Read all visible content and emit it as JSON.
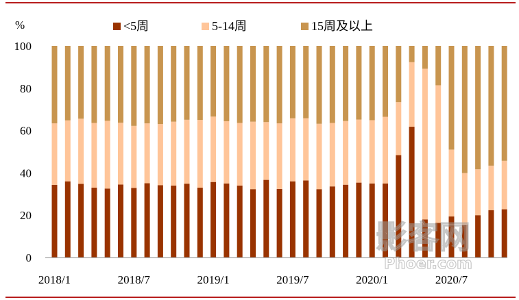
{
  "chart_data": {
    "type": "bar",
    "stacked": true,
    "y_unit": "%",
    "ylim": [
      0,
      100
    ],
    "yticks": [
      0,
      20,
      40,
      60,
      80,
      100
    ],
    "x_tick_labels": [
      "2018/1",
      "2018/7",
      "2019/1",
      "2019/7",
      "2020/1",
      "2020/7"
    ],
    "x_tick_index": [
      0,
      6,
      12,
      18,
      24,
      30
    ],
    "categories": [
      "2018/1",
      "2018/2",
      "2018/3",
      "2018/4",
      "2018/5",
      "2018/6",
      "2018/7",
      "2018/8",
      "2018/9",
      "2018/10",
      "2018/11",
      "2018/12",
      "2019/1",
      "2019/2",
      "2019/3",
      "2019/4",
      "2019/5",
      "2019/6",
      "2019/7",
      "2019/8",
      "2019/9",
      "2019/10",
      "2019/11",
      "2019/12",
      "2020/1",
      "2020/2",
      "2020/3",
      "2020/4",
      "2020/5",
      "2020/6",
      "2020/7",
      "2020/8",
      "2020/9",
      "2020/10",
      "2020/11"
    ],
    "series": [
      {
        "name": "<5周",
        "color": "#993300",
        "values": [
          34.3,
          36,
          34.8,
          33,
          32.6,
          34.5,
          32.9,
          35.1,
          34.2,
          34,
          34.9,
          33,
          35.7,
          35,
          34,
          32.3,
          36.7,
          32.4,
          36,
          36.4,
          32.3,
          33.6,
          34.4,
          35.4,
          35,
          35,
          48.4,
          61.8,
          18,
          16.4,
          19.4,
          15.6,
          20,
          22.4,
          22.8
        ]
      },
      {
        "name": "5-14周",
        "color": "#ffc599",
        "values": [
          29.1,
          28.8,
          30.8,
          30.6,
          32,
          29.2,
          29.3,
          28.3,
          28.9,
          30.2,
          30.2,
          32,
          30.9,
          29.4,
          29.6,
          31.9,
          27.3,
          31,
          29.8,
          29.4,
          30.9,
          30,
          30.1,
          29.8,
          29.9,
          31.5,
          25,
          30.5,
          71.2,
          65,
          31.6,
          24.3,
          21.7,
          21,
          22.9
        ]
      },
      {
        "name": "15周及以上",
        "color": "#c8954f",
        "values": [
          36.6,
          35.2,
          34.4,
          36.4,
          35.4,
          36.3,
          37.8,
          36.6,
          36.9,
          35.8,
          34.9,
          35,
          33.4,
          35.6,
          36.4,
          35.8,
          36,
          36.6,
          34.2,
          34.2,
          36.8,
          36.4,
          35.5,
          34.8,
          35.1,
          33.5,
          26.6,
          7.7,
          10.8,
          18.6,
          49,
          60.1,
          58.3,
          56.6,
          54.3
        ]
      }
    ],
    "legend_placement": "top-center",
    "grid": false
  },
  "watermark": {
    "main": "影客网",
    "sub": "Phoer.com"
  }
}
